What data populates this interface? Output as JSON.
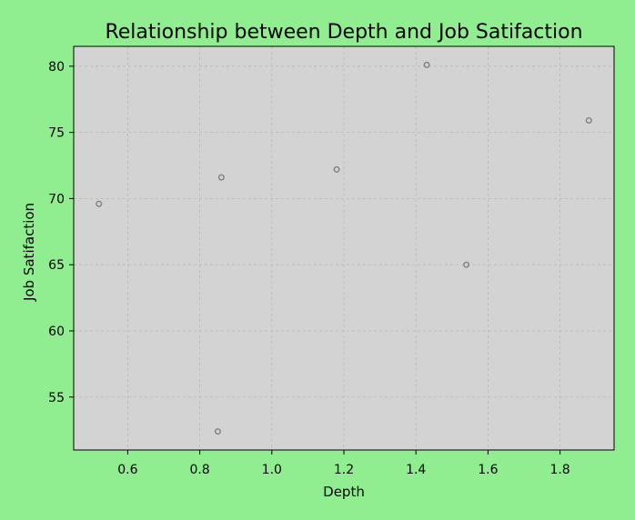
{
  "chart_data": {
    "type": "scatter",
    "title": "Relationship between Depth and Job Satifaction",
    "xlabel": "Depth",
    "ylabel": "Job Satifaction",
    "xlim": [
      0.45,
      1.95
    ],
    "ylim": [
      51.0,
      81.5
    ],
    "xticks": [
      "0.6",
      "0.8",
      "1.0",
      "1.2",
      "1.4",
      "1.6",
      "1.8"
    ],
    "yticks": [
      "55",
      "60",
      "65",
      "70",
      "75",
      "80"
    ],
    "grid": true,
    "series": [
      {
        "points": [
          {
            "x": 0.52,
            "y": 69.6
          },
          {
            "x": 0.86,
            "y": 71.6
          },
          {
            "x": 0.85,
            "y": 52.4
          },
          {
            "x": 1.18,
            "y": 72.2
          },
          {
            "x": 1.43,
            "y": 80.1
          },
          {
            "x": 1.54,
            "y": 65.0
          },
          {
            "x": 1.88,
            "y": 75.9
          }
        ]
      }
    ],
    "colors": {
      "background": "#90ee90",
      "plot_area": "#d3d3d3",
      "marker_edge": "#808080",
      "grid": "#b8b8b8"
    }
  }
}
